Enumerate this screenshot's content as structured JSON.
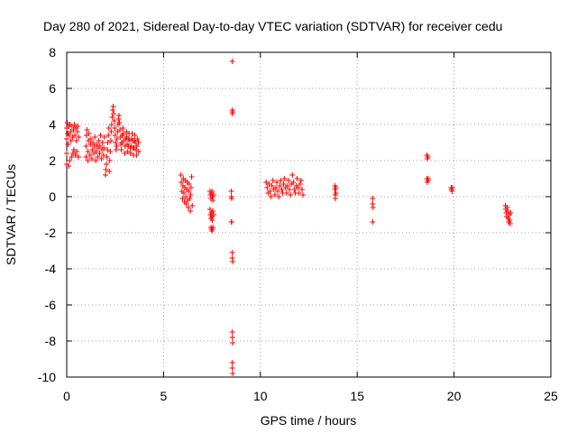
{
  "chart_data": {
    "type": "scatter",
    "title": "Day 280 of 2021, Sidereal Day-to-day VTEC variation (SDTVAR) for receiver cedu",
    "xlabel": "GPS time / hours",
    "ylabel": "SDTVAR / TECUs",
    "xlim": [
      0,
      25
    ],
    "ylim": [
      -10,
      8
    ],
    "xticks": [
      0,
      5,
      10,
      15,
      20,
      25
    ],
    "yticks": [
      -10,
      -8,
      -6,
      -4,
      -2,
      0,
      2,
      4,
      6,
      8
    ],
    "grid": true,
    "marker": "+",
    "color": "#ff0000",
    "series": [
      {
        "name": "SDTVAR",
        "points": [
          [
            0.0,
            1.8
          ],
          [
            0.0,
            2.4
          ],
          [
            0.0,
            3.2
          ],
          [
            0.0,
            3.8
          ],
          [
            0.03,
            4.1
          ],
          [
            0.05,
            3.5
          ],
          [
            0.07,
            2.9
          ],
          [
            0.1,
            1.7
          ],
          [
            0.1,
            3.9
          ],
          [
            0.12,
            3.4
          ],
          [
            0.15,
            2.0
          ],
          [
            0.17,
            4.0
          ],
          [
            0.2,
            3.6
          ],
          [
            0.22,
            3.1
          ],
          [
            0.25,
            2.2
          ],
          [
            0.27,
            3.9
          ],
          [
            0.3,
            3.3
          ],
          [
            0.32,
            2.4
          ],
          [
            0.35,
            3.7
          ],
          [
            0.37,
            2.6
          ],
          [
            0.4,
            4.0
          ],
          [
            0.42,
            3.4
          ],
          [
            0.45,
            2.3
          ],
          [
            0.47,
            3.8
          ],
          [
            0.5,
            3.1
          ],
          [
            0.52,
            2.5
          ],
          [
            0.55,
            3.6
          ],
          [
            0.57,
            3.9
          ],
          [
            0.6,
            2.2
          ],
          [
            0.62,
            3.3
          ],
          [
            1.0,
            2.2
          ],
          [
            1.0,
            2.8
          ],
          [
            1.02,
            3.4
          ],
          [
            1.05,
            3.7
          ],
          [
            1.1,
            2.0
          ],
          [
            1.1,
            2.5
          ],
          [
            1.12,
            3.1
          ],
          [
            1.15,
            3.5
          ],
          [
            1.2,
            2.3
          ],
          [
            1.22,
            2.9
          ],
          [
            1.25,
            3.2
          ],
          [
            1.3,
            2.1
          ],
          [
            1.32,
            2.6
          ],
          [
            1.35,
            3.0
          ],
          [
            1.4,
            2.4
          ],
          [
            1.42,
            2.8
          ],
          [
            1.45,
            3.3
          ],
          [
            1.5,
            2.0
          ],
          [
            1.52,
            2.5
          ],
          [
            1.55,
            2.9
          ],
          [
            1.6,
            2.2
          ],
          [
            1.62,
            2.7
          ],
          [
            1.65,
            3.1
          ],
          [
            1.7,
            2.4
          ],
          [
            1.72,
            2.8
          ],
          [
            1.75,
            3.4
          ],
          [
            1.8,
            2.1
          ],
          [
            1.82,
            2.6
          ],
          [
            1.85,
            3.0
          ],
          [
            1.9,
            2.3
          ],
          [
            1.92,
            2.7
          ],
          [
            1.95,
            3.3
          ],
          [
            2.0,
            1.2
          ],
          [
            2.02,
            1.5
          ],
          [
            2.05,
            1.8
          ],
          [
            2.08,
            2.2
          ],
          [
            2.1,
            2.6
          ],
          [
            2.12,
            3.0
          ],
          [
            2.15,
            3.4
          ],
          [
            2.18,
            3.8
          ],
          [
            2.2,
            1.4
          ],
          [
            2.22,
            2.0
          ],
          [
            2.25,
            2.5
          ],
          [
            2.28,
            3.1
          ],
          [
            2.3,
            3.6
          ],
          [
            2.32,
            4.0
          ],
          [
            2.35,
            4.4
          ],
          [
            2.38,
            4.8
          ],
          [
            2.4,
            5.0
          ],
          [
            2.42,
            4.6
          ],
          [
            2.45,
            4.2
          ],
          [
            2.48,
            3.8
          ],
          [
            2.5,
            3.4
          ],
          [
            2.52,
            3.0
          ],
          [
            2.55,
            2.6
          ],
          [
            2.58,
            2.8
          ],
          [
            2.6,
            3.2
          ],
          [
            2.62,
            3.6
          ],
          [
            2.65,
            4.0
          ],
          [
            2.68,
            4.3
          ],
          [
            2.7,
            4.5
          ],
          [
            2.72,
            4.1
          ],
          [
            2.75,
            3.7
          ],
          [
            2.78,
            3.3
          ],
          [
            2.8,
            2.9
          ],
          [
            2.82,
            2.6
          ],
          [
            2.85,
            3.0
          ],
          [
            2.88,
            3.4
          ],
          [
            2.9,
            3.8
          ],
          [
            2.92,
            3.5
          ],
          [
            2.95,
            3.1
          ],
          [
            3.0,
            2.4
          ],
          [
            3.02,
            2.8
          ],
          [
            3.05,
            3.2
          ],
          [
            3.08,
            3.6
          ],
          [
            3.1,
            3.3
          ],
          [
            3.12,
            2.9
          ],
          [
            3.15,
            2.5
          ],
          [
            3.18,
            2.8
          ],
          [
            3.2,
            3.2
          ],
          [
            3.22,
            3.5
          ],
          [
            3.25,
            3.1
          ],
          [
            3.28,
            2.7
          ],
          [
            3.3,
            2.4
          ],
          [
            3.32,
            2.8
          ],
          [
            3.35,
            3.2
          ],
          [
            3.38,
            3.5
          ],
          [
            3.4,
            3.1
          ],
          [
            3.42,
            2.7
          ],
          [
            3.45,
            2.3
          ],
          [
            3.48,
            2.7
          ],
          [
            3.5,
            3.1
          ],
          [
            3.52,
            3.4
          ],
          [
            3.55,
            3.0
          ],
          [
            3.58,
            2.6
          ],
          [
            3.6,
            2.3
          ],
          [
            3.62,
            2.8
          ],
          [
            3.65,
            3.2
          ],
          [
            3.7,
            3.0
          ],
          [
            3.72,
            2.5
          ],
          [
            5.9,
            1.2
          ],
          [
            5.92,
            0.8
          ],
          [
            5.95,
            0.3
          ],
          [
            5.98,
            -0.1
          ],
          [
            6.0,
            0.6
          ],
          [
            6.02,
            1.0
          ],
          [
            6.05,
            0.2
          ],
          [
            6.08,
            -0.3
          ],
          [
            6.1,
            0.5
          ],
          [
            6.12,
            0.9
          ],
          [
            6.15,
            0.0
          ],
          [
            6.18,
            -0.4
          ],
          [
            6.2,
            0.4
          ],
          [
            6.22,
            0.8
          ],
          [
            6.25,
            -0.2
          ],
          [
            6.28,
            -0.6
          ],
          [
            6.3,
            0.3
          ],
          [
            6.32,
            0.7
          ],
          [
            6.35,
            -0.1
          ],
          [
            6.38,
            -0.8
          ],
          [
            6.4,
            0.1
          ],
          [
            6.42,
            0.5
          ],
          [
            6.45,
            1.1
          ],
          [
            6.48,
            -0.5
          ],
          [
            7.4,
            0.3
          ],
          [
            7.42,
            0.1
          ],
          [
            7.45,
            -0.1
          ],
          [
            7.48,
            0.2
          ],
          [
            7.5,
            0.3
          ],
          [
            7.52,
            0.0
          ],
          [
            7.55,
            -0.2
          ],
          [
            7.58,
            0.1
          ],
          [
            7.4,
            -0.7
          ],
          [
            7.42,
            -1.0
          ],
          [
            7.45,
            -1.2
          ],
          [
            7.48,
            -0.9
          ],
          [
            7.5,
            -1.1
          ],
          [
            7.52,
            -1.3
          ],
          [
            7.55,
            -0.8
          ],
          [
            7.58,
            -1.0
          ],
          [
            7.45,
            -1.7
          ],
          [
            7.48,
            -1.8
          ],
          [
            7.5,
            -1.9
          ],
          [
            7.52,
            -1.8
          ],
          [
            7.55,
            -1.7
          ],
          [
            8.55,
            7.5
          ],
          [
            8.55,
            4.8
          ],
          [
            8.55,
            4.6
          ],
          [
            8.57,
            4.7
          ],
          [
            8.5,
            0.3
          ],
          [
            8.5,
            0.0
          ],
          [
            8.52,
            -0.1
          ],
          [
            8.5,
            -1.4
          ],
          [
            8.52,
            -1.4
          ],
          [
            8.55,
            -3.1
          ],
          [
            8.55,
            -3.4
          ],
          [
            8.57,
            -3.6
          ],
          [
            8.55,
            -7.5
          ],
          [
            8.55,
            -7.8
          ],
          [
            8.57,
            -8.1
          ],
          [
            8.55,
            -9.2
          ],
          [
            8.55,
            -9.5
          ],
          [
            8.57,
            -9.8
          ],
          [
            10.3,
            0.8
          ],
          [
            10.35,
            0.5
          ],
          [
            10.4,
            0.2
          ],
          [
            10.45,
            0.7
          ],
          [
            10.5,
            0.3
          ],
          [
            10.55,
            0.0
          ],
          [
            10.6,
            0.6
          ],
          [
            10.65,
            0.9
          ],
          [
            10.7,
            0.4
          ],
          [
            10.75,
            0.1
          ],
          [
            10.8,
            0.5
          ],
          [
            10.85,
            0.8
          ],
          [
            10.9,
            0.3
          ],
          [
            10.95,
            0.0
          ],
          [
            11.0,
            0.6
          ],
          [
            11.05,
            0.9
          ],
          [
            11.1,
            0.4
          ],
          [
            11.15,
            0.2
          ],
          [
            11.2,
            0.7
          ],
          [
            11.25,
            1.0
          ],
          [
            11.3,
            0.5
          ],
          [
            11.35,
            0.2
          ],
          [
            11.4,
            0.6
          ],
          [
            11.45,
            0.9
          ],
          [
            11.5,
            0.4
          ],
          [
            11.55,
            0.1
          ],
          [
            11.6,
            0.7
          ],
          [
            11.65,
            1.2
          ],
          [
            11.7,
            0.8
          ],
          [
            11.75,
            0.4
          ],
          [
            11.8,
            0.2
          ],
          [
            11.85,
            0.6
          ],
          [
            11.9,
            1.0
          ],
          [
            11.95,
            0.5
          ],
          [
            12.0,
            0.2
          ],
          [
            12.05,
            0.7
          ],
          [
            12.1,
            0.9
          ],
          [
            12.15,
            0.4
          ],
          [
            12.2,
            0.1
          ],
          [
            13.85,
            0.6
          ],
          [
            13.85,
            0.4
          ],
          [
            13.87,
            0.1
          ],
          [
            13.87,
            -0.1
          ],
          [
            13.9,
            0.5
          ],
          [
            13.9,
            0.2
          ],
          [
            15.8,
            -0.1
          ],
          [
            15.8,
            -0.4
          ],
          [
            15.82,
            -0.6
          ],
          [
            15.8,
            -1.4
          ],
          [
            18.6,
            2.3
          ],
          [
            18.62,
            2.1
          ],
          [
            18.65,
            2.2
          ],
          [
            18.6,
            1.0
          ],
          [
            18.62,
            0.8
          ],
          [
            18.65,
            0.9
          ],
          [
            18.67,
            1.0
          ],
          [
            19.85,
            0.5
          ],
          [
            19.87,
            0.4
          ],
          [
            19.9,
            0.3
          ],
          [
            19.92,
            0.5
          ],
          [
            22.65,
            -0.5
          ],
          [
            22.67,
            -0.7
          ],
          [
            22.7,
            -0.9
          ],
          [
            22.72,
            -1.1
          ],
          [
            22.75,
            -0.6
          ],
          [
            22.77,
            -0.8
          ],
          [
            22.8,
            -1.2
          ],
          [
            22.82,
            -1.4
          ],
          [
            22.85,
            -1.0
          ],
          [
            22.87,
            -1.3
          ],
          [
            22.9,
            -1.5
          ],
          [
            22.92,
            -0.9
          ]
        ]
      }
    ]
  }
}
